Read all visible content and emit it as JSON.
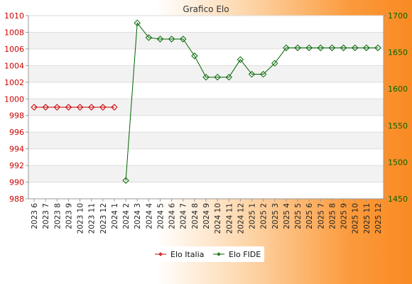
{
  "chart_data": {
    "type": "line",
    "title": "Grafico Elo",
    "categories": [
      "2023 6",
      "2023 7",
      "2023 8",
      "2023 9",
      "2023 10",
      "2023 11",
      "2023 12",
      "2024 1",
      "2024 2",
      "2024 3",
      "2024 4",
      "2024 5",
      "2024 6",
      "2024 7",
      "2024 8",
      "2024 9",
      "2024 10",
      "2024 11",
      "2024 12",
      "2025 1",
      "2025 2",
      "2025 3",
      "2025 4",
      "2025 5",
      "2025 6",
      "2025 7",
      "2025 8",
      "2025 9",
      "2025 10",
      "2025 11",
      "2025 12"
    ],
    "left_axis": {
      "ylim": [
        988,
        1010
      ],
      "ticks": [
        988,
        990,
        992,
        994,
        996,
        998,
        1000,
        1002,
        1004,
        1006,
        1008,
        1010
      ],
      "color": "#cc0000"
    },
    "right_axis": {
      "ylim": [
        1450,
        1700
      ],
      "ticks": [
        1450,
        1500,
        1550,
        1600,
        1650,
        1700
      ],
      "color": "#006600"
    },
    "grid": true,
    "legend_position": "bottom",
    "series": [
      {
        "name": "Elo Italia",
        "axis": "left",
        "color": "#cc0000",
        "values": [
          999,
          999,
          999,
          999,
          999,
          999,
          999,
          999,
          null,
          null,
          null,
          null,
          null,
          null,
          null,
          null,
          null,
          null,
          null,
          null,
          null,
          null,
          null,
          null,
          null,
          null,
          null,
          null,
          null,
          null,
          null
        ]
      },
      {
        "name": "Elo FIDE",
        "axis": "right",
        "color": "#006600",
        "values": [
          null,
          null,
          null,
          null,
          null,
          null,
          null,
          null,
          1475,
          1690,
          1670,
          1668,
          1668,
          1668,
          1645,
          1616,
          1616,
          1616,
          1640,
          1620,
          1620,
          1635,
          1656,
          1656,
          1656,
          1656,
          1656,
          1656,
          1656,
          1656,
          1656
        ]
      }
    ]
  }
}
